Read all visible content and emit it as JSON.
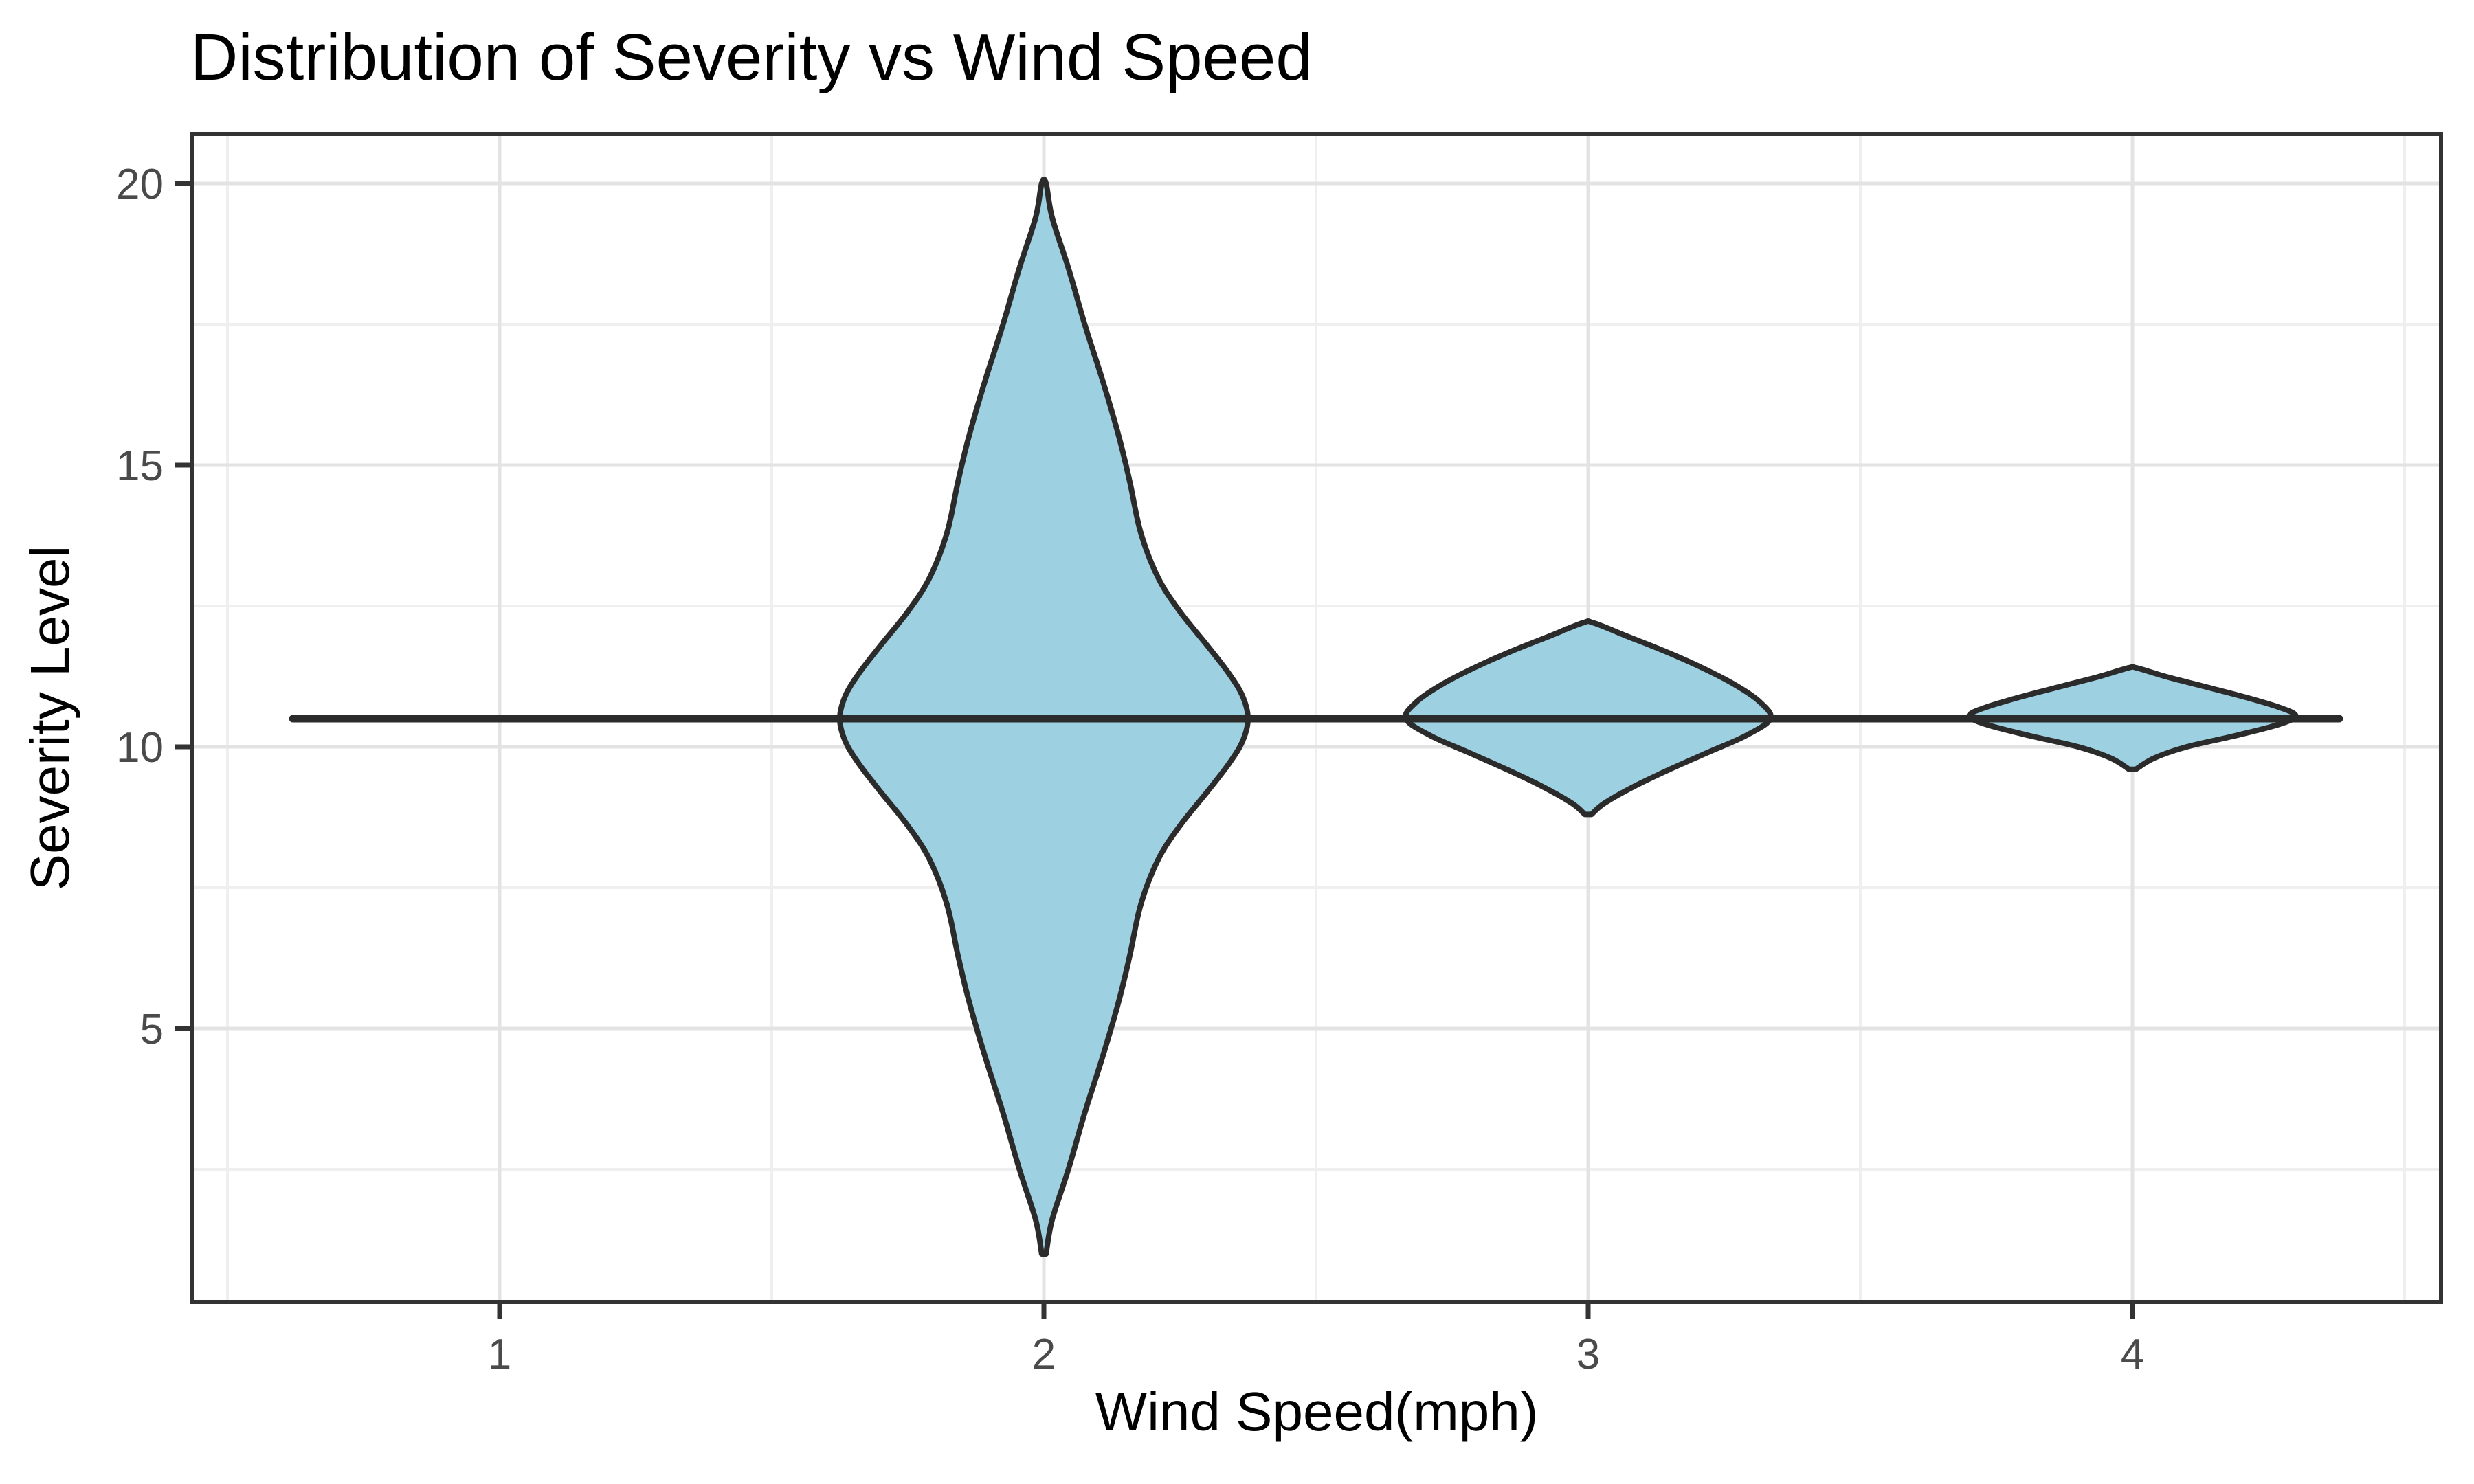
{
  "title": "Distribution of Severity vs Wind Speed",
  "axes": {
    "x": {
      "label": "Wind Speed(mph)",
      "tick_labels": [
        "1",
        "2",
        "3",
        "4"
      ],
      "tick_values": [
        1,
        2,
        3,
        4
      ],
      "minor_values": [
        0.5,
        1.5,
        2.5,
        3.5,
        4.5
      ],
      "range": [
        0.44,
        4.57
      ]
    },
    "y": {
      "label": "Severity Level",
      "tick_labels": [
        "20",
        "15",
        "10",
        "5"
      ],
      "tick_values": [
        20,
        15,
        10,
        5
      ],
      "minor_values": [
        2.5,
        7.5,
        12.5,
        17.5
      ],
      "range": [
        0.15,
        20.88
      ]
    }
  },
  "style": {
    "background": "#ffffff",
    "violin_fill": "#9DD0E1",
    "violin_stroke": "#2B2B2B",
    "panel_border": "#333333",
    "grid_major": "#E3E3E3",
    "grid_minor": "#EFEFEF",
    "tick_mark_color": "#333333",
    "tick_label_color": "#4A4A4A",
    "title_color": "#000000",
    "axis_title_color": "#000000"
  },
  "chart_data": {
    "type": "violin",
    "title": "Distribution of Severity vs Wind Speed",
    "xlabel": "Wind Speed(mph)",
    "ylabel": "Severity Level",
    "x_categories": [
      1,
      2,
      3,
      4
    ],
    "ylim": [
      0.15,
      20.88
    ],
    "xlim": [
      0.44,
      4.57
    ],
    "grid": true,
    "legend": false,
    "ridge_line": {
      "y": 10.5,
      "x_start": 0.62,
      "x_end": 4.38,
      "note": "razor-thin density ridge at severity ~10.5 running continuously through all four violins"
    },
    "violins": [
      {
        "x": 1,
        "y_min": 10.5,
        "y_max": 10.5,
        "y_mode": 10.5,
        "max_half_width": 0.38,
        "shape": "flat horizontal line - essentially all mass concentrated at severity ~10.5",
        "profile": []
      },
      {
        "x": 2,
        "y_min": 1.0,
        "y_max": 20.0,
        "y_mode": 10.5,
        "max_half_width": 0.375,
        "shape": "large symmetric bell spanning severity 1-20, widest at 10.5, thin tails to both tips",
        "profile": [
          [
            1.0,
            0.004
          ],
          [
            1.6,
            0.015
          ],
          [
            2.5,
            0.045
          ],
          [
            3.5,
            0.075
          ],
          [
            4.5,
            0.108
          ],
          [
            5.5,
            0.138
          ],
          [
            6.3,
            0.158
          ],
          [
            7.2,
            0.178
          ],
          [
            8.0,
            0.21
          ],
          [
            8.6,
            0.25
          ],
          [
            9.2,
            0.3
          ],
          [
            9.7,
            0.34
          ],
          [
            10.1,
            0.365
          ],
          [
            10.5,
            0.375
          ],
          [
            10.9,
            0.365
          ],
          [
            11.3,
            0.34
          ],
          [
            11.8,
            0.3
          ],
          [
            12.4,
            0.25
          ],
          [
            13.0,
            0.21
          ],
          [
            13.8,
            0.178
          ],
          [
            14.7,
            0.158
          ],
          [
            15.5,
            0.138
          ],
          [
            16.5,
            0.108
          ],
          [
            17.5,
            0.075
          ],
          [
            18.5,
            0.045
          ],
          [
            19.4,
            0.015
          ],
          [
            20.0,
            0.004
          ]
        ]
      },
      {
        "x": 3,
        "y_min": 8.8,
        "y_max": 12.2,
        "y_mode": 10.5,
        "max_half_width": 0.335,
        "shape": "small rounded diamond bump centered on severity ~10.5",
        "profile": [
          [
            8.8,
            0.006
          ],
          [
            9.0,
            0.03
          ],
          [
            9.3,
            0.085
          ],
          [
            9.6,
            0.15
          ],
          [
            9.9,
            0.22
          ],
          [
            10.2,
            0.29
          ],
          [
            10.5,
            0.335
          ],
          [
            10.8,
            0.315
          ],
          [
            11.1,
            0.27
          ],
          [
            11.4,
            0.21
          ],
          [
            11.7,
            0.14
          ],
          [
            11.95,
            0.075
          ],
          [
            12.2,
            0.01
          ]
        ]
      },
      {
        "x": 4,
        "y_min": 9.6,
        "y_max": 11.4,
        "y_mode": 10.5,
        "max_half_width": 0.3,
        "shape": "flattest small lens-shaped bump centered on severity ~10.5",
        "profile": [
          [
            9.6,
            0.006
          ],
          [
            9.8,
            0.04
          ],
          [
            10.0,
            0.1
          ],
          [
            10.2,
            0.19
          ],
          [
            10.4,
            0.27
          ],
          [
            10.55,
            0.3
          ],
          [
            10.7,
            0.27
          ],
          [
            10.9,
            0.2
          ],
          [
            11.1,
            0.12
          ],
          [
            11.25,
            0.06
          ],
          [
            11.4,
            0.008
          ]
        ]
      }
    ]
  }
}
